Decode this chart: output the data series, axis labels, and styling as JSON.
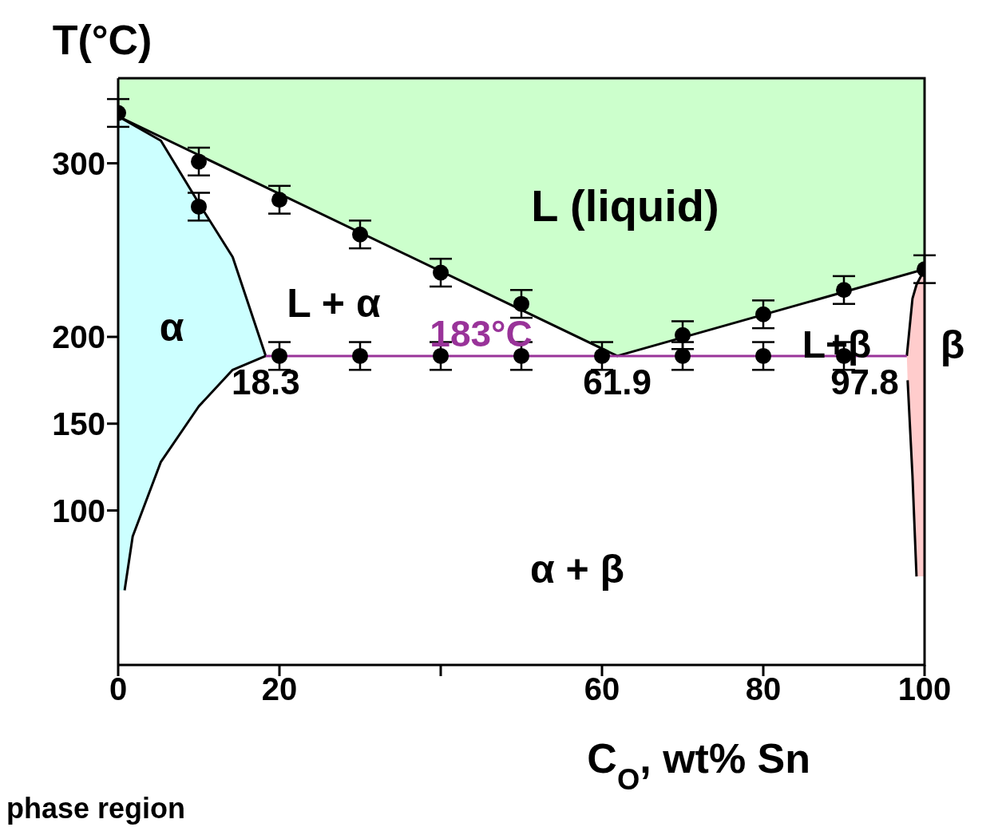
{
  "chart_data": {
    "type": "scatter",
    "xlabel": "C$_{O}$, wt% Sn",
    "ylabel": "T(°C)",
    "xlim": [
      0,
      100
    ],
    "xticks": [
      0,
      20,
      {
        "value": 40,
        "label": null
      },
      60,
      80,
      100
    ],
    "ylim": [
      11,
      349
    ],
    "yticks": [
      100,
      150,
      200,
      300
    ],
    "grid": false,
    "legend": false,
    "series": [
      {
        "type": "line",
        "color": "#000000",
        "x": [
          0,
          61.9,
          100
        ],
        "values": [
          327,
          189,
          239
        ]
      },
      {
        "type": "line",
        "color": "#000000",
        "x": [
          0,
          5.3,
          10,
          14.2,
          18.3
        ],
        "values": [
          327,
          313,
          277,
          246,
          189
        ]
      },
      {
        "type": "line",
        "color": "#000000",
        "x": [
          0.8,
          1.8,
          5.3,
          10,
          14.2,
          18.3
        ],
        "values": [
          54,
          85,
          128,
          160,
          181,
          189
        ]
      },
      {
        "type": "line",
        "color": "#000000",
        "x": [
          97.8,
          98.5,
          99,
          100
        ],
        "values": [
          189,
          222,
          230,
          239
        ]
      },
      {
        "type": "line",
        "color": "#000000",
        "x": [
          97.9,
          98.5,
          99
        ],
        "values": [
          175,
          120,
          62
        ]
      },
      {
        "type": "line",
        "color": "#993399",
        "x": [
          18.3,
          97.8
        ],
        "values": [
          189,
          189
        ]
      },
      {
        "marker": "circle",
        "color": "#000000",
        "x": [
          0,
          10,
          10,
          20,
          30,
          40,
          50,
          60,
          70,
          80,
          90,
          100,
          20,
          30,
          40,
          50,
          70,
          80,
          90
        ],
        "values": [
          329,
          301,
          275,
          279,
          259,
          237,
          219,
          189,
          201,
          213,
          227,
          239,
          189,
          189,
          189,
          189,
          189,
          189,
          189
        ],
        "errors": [
          8,
          8,
          8,
          8,
          8,
          8,
          8,
          8,
          8,
          8,
          8,
          8,
          8,
          8,
          8,
          8,
          8,
          8,
          8
        ]
      }
    ],
    "annotations": [
      "L (liquid)",
      "L + α",
      "α",
      {
        "text": "183°C",
        "x": 45,
        "y": 189
      },
      "L+β",
      "β",
      "α + β",
      {
        "text": "18.3",
        "x": 18.3,
        "y": 189
      },
      {
        "text": "61.9",
        "x": 61.9,
        "y": 189
      },
      {
        "text": "97.8",
        "x": 97.8,
        "y": 189
      },
      "phase region"
    ]
  }
}
